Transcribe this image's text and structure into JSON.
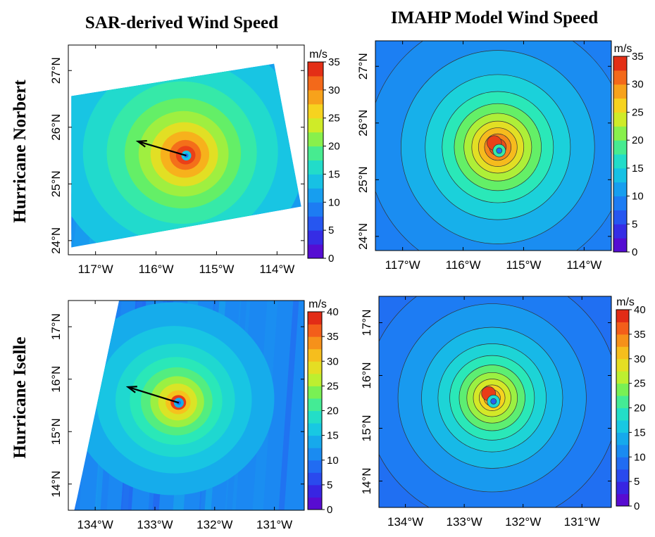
{
  "column_titles": [
    "SAR-derived Wind Speed",
    "IMAHP Model Wind Speed"
  ],
  "row_titles": [
    "Hurricane Norbert",
    "Hurricane Iselle"
  ],
  "colors": {
    "scale": [
      "#6a00c8",
      "#3a1fe0",
      "#2850f0",
      "#1d7cf3",
      "#16a4ee",
      "#18cde0",
      "#2ae8b8",
      "#6ef05a",
      "#c8ef2a",
      "#f6d31f",
      "#f79a1a",
      "#f2551a",
      "#d81313"
    ],
    "arrow": "#000000"
  },
  "chart_data": [
    {
      "type": "heatmap",
      "panel": "SAR-derived Wind Speed / Hurricane Norbert",
      "unit": "m/s",
      "colorbar_range": [
        0,
        35
      ],
      "colorbar_ticks": [
        0,
        5,
        10,
        15,
        20,
        25,
        30,
        35
      ],
      "x_ticks": [
        "117°W",
        "116°W",
        "115°W",
        "114°W"
      ],
      "y_ticks": [
        "24°N",
        "25°N",
        "26°N",
        "27°N"
      ],
      "lon_range": [
        -117.45,
        -113.55
      ],
      "lat_range": [
        23.75,
        27.45
      ],
      "center": {
        "lon": -115.5,
        "lat": 25.5
      },
      "peak_wind_mps": 33,
      "motion_arrow": {
        "from": [
          -115.5,
          25.5
        ],
        "to": [
          -116.3,
          25.75
        ]
      },
      "swath_corners": [
        [
          -117.4,
          26.55
        ],
        [
          -114.05,
          27.12
        ],
        [
          -113.6,
          24.6
        ],
        [
          -117.4,
          23.88
        ]
      ]
    },
    {
      "type": "heatmap",
      "panel": "IMAHP Model Wind Speed / Hurricane Norbert",
      "unit": "m/s",
      "colorbar_range": [
        0,
        35
      ],
      "colorbar_ticks": [
        0,
        5,
        10,
        15,
        20,
        25,
        30,
        35
      ],
      "x_ticks": [
        "117°W",
        "116°W",
        "115°W",
        "114°W"
      ],
      "y_ticks": [
        "24°N",
        "25°N",
        "26°N",
        "27°N"
      ],
      "lon_range": [
        -117.45,
        -113.55
      ],
      "lat_range": [
        23.75,
        27.45
      ],
      "center": {
        "lon": -115.45,
        "lat": 25.55
      },
      "peak_wind_mps": 33
    },
    {
      "type": "heatmap",
      "panel": "SAR-derived Wind Speed / Hurricane Iselle",
      "unit": "m/s",
      "colorbar_range": [
        0,
        40
      ],
      "colorbar_ticks": [
        0,
        5,
        10,
        15,
        20,
        25,
        30,
        35,
        40
      ],
      "x_ticks": [
        "134°W",
        "133°W",
        "132°W",
        "131°W"
      ],
      "y_ticks": [
        "14°N",
        "15°N",
        "16°N",
        "17°N"
      ],
      "lon_range": [
        -134.45,
        -130.5
      ],
      "lat_range": [
        13.5,
        17.5
      ],
      "center": {
        "lon": -132.6,
        "lat": 15.55
      },
      "peak_wind_mps": 38,
      "motion_arrow": {
        "from": [
          -132.6,
          15.55
        ],
        "to": [
          -133.45,
          15.85
        ]
      },
      "swath_corners": [
        [
          -133.6,
          17.5
        ],
        [
          -130.5,
          17.5
        ],
        [
          -130.5,
          13.5
        ],
        [
          -134.35,
          13.5
        ],
        [
          -134.3,
          13.75
        ]
      ]
    },
    {
      "type": "heatmap",
      "panel": "IMAHP Model Wind Speed / Hurricane Iselle",
      "unit": "m/s",
      "colorbar_range": [
        0,
        40
      ],
      "colorbar_ticks": [
        0,
        5,
        10,
        15,
        20,
        25,
        30,
        35,
        40
      ],
      "x_ticks": [
        "134°W",
        "133°W",
        "132°W",
        "131°W"
      ],
      "y_ticks": [
        "14°N",
        "15°N",
        "16°N",
        "17°N"
      ],
      "lon_range": [
        -134.45,
        -130.5
      ],
      "lat_range": [
        13.5,
        17.5
      ],
      "center": {
        "lon": -132.55,
        "lat": 15.55
      },
      "peak_wind_mps": 38
    }
  ]
}
